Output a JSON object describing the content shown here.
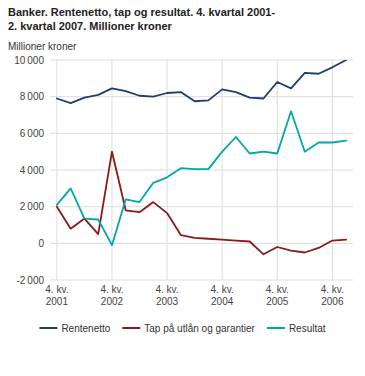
{
  "chart_data": {
    "type": "line",
    "title": "Banker. Rentenetto, tap og resultat. 4. kvartal 2001-\n2. kvartal 2007. Millioner kroner",
    "y_label": "Millioner kroner",
    "categories": [
      "4. kv.\n2001",
      null,
      null,
      null,
      "4. kv.\n2002",
      null,
      null,
      null,
      "4. kv.\n2003",
      null,
      null,
      null,
      "4. kv.\n2004",
      null,
      null,
      null,
      "4. kv.\n2005",
      null,
      null,
      null,
      "4. kv.\n2006",
      null
    ],
    "series": [
      {
        "name": "Rentenetto",
        "color": "#1c3f6e",
        "values": [
          7900,
          7650,
          7950,
          8100,
          8450,
          8300,
          8050,
          8000,
          8200,
          8250,
          7750,
          7800,
          8400,
          8250,
          7950,
          7900,
          8800,
          8450,
          9300,
          9250,
          9600,
          10000
        ]
      },
      {
        "name": "Tap på utlån og garantier",
        "color": "#8b1a1a",
        "values": [
          2000,
          800,
          1350,
          500,
          5000,
          1800,
          1700,
          2250,
          1650,
          450,
          300,
          250,
          200,
          150,
          100,
          -600,
          -200,
          -400,
          -500,
          -250,
          150,
          200
        ]
      },
      {
        "name": "Resultat",
        "color": "#00a8a8",
        "values": [
          2100,
          3000,
          1350,
          1300,
          -100,
          2400,
          2250,
          3300,
          3600,
          4100,
          4050,
          4050,
          5000,
          5800,
          4900,
          5000,
          4900,
          7200,
          5000,
          5500,
          5500,
          5600
        ]
      }
    ],
    "ylim": [
      -2000,
      10000
    ],
    "yticks": [
      {
        "value": -2000,
        "label": "-2 000"
      },
      0,
      {
        "value": 2000,
        "label": "2 000"
      },
      {
        "value": 4000,
        "label": "4 000"
      },
      {
        "value": 6000,
        "label": "6 000"
      },
      {
        "value": 8000,
        "label": "8 000"
      },
      {
        "value": 10000,
        "label": "10 000"
      }
    ],
    "grid": true,
    "legend": "bottom"
  }
}
